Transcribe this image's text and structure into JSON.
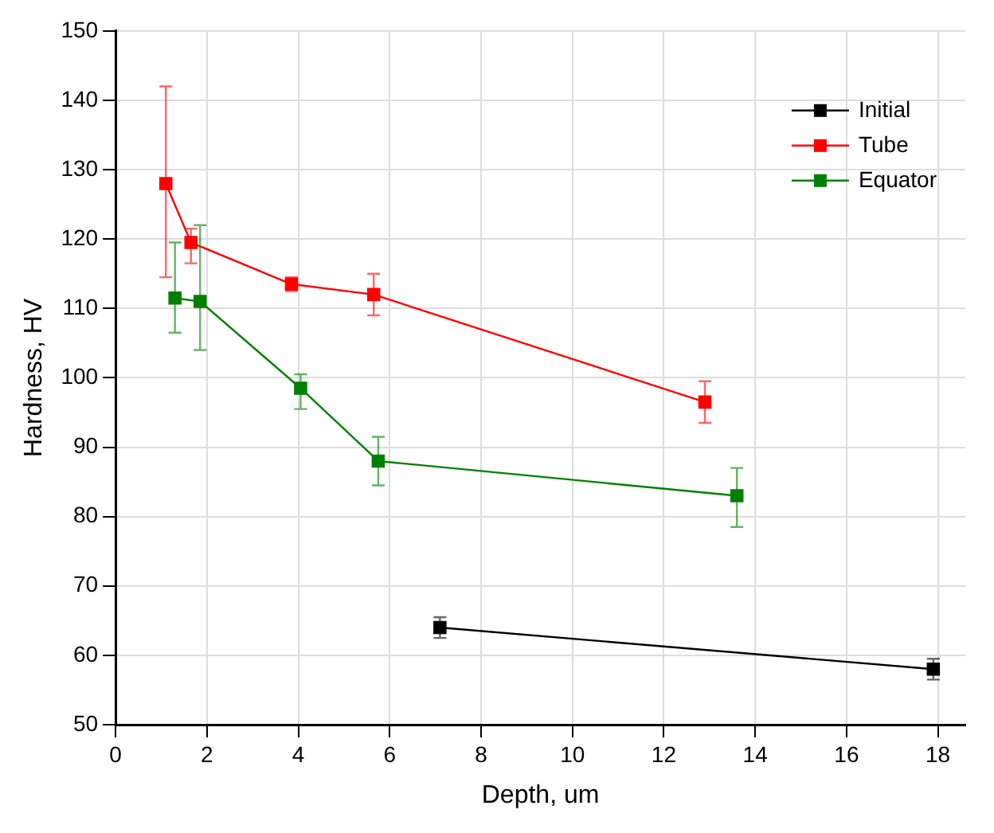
{
  "chart_data": {
    "type": "line",
    "xlabel": "Depth, um",
    "ylabel": "Hardness, HV",
    "xlim": [
      0,
      18.6
    ],
    "xticks": [
      0,
      2,
      4,
      6,
      8,
      10,
      12,
      14,
      16,
      18
    ],
    "ylim": [
      50,
      150
    ],
    "yticks": [
      50,
      60,
      70,
      80,
      90,
      100,
      110,
      120,
      130,
      140,
      150
    ],
    "grid": true,
    "legend": "top right",
    "marker": "square",
    "line_style": "solid",
    "series": [
      {
        "name": "Initial",
        "color": "#000000",
        "x": [
          7.1,
          17.9
        ],
        "values": [
          64,
          58
        ],
        "errors": [
          1.5,
          1.5
        ]
      },
      {
        "name": "Tube",
        "color": "#ff0000",
        "x": [
          1.1,
          1.65,
          3.85,
          5.65,
          12.9
        ],
        "values": [
          128,
          119.5,
          113.5,
          112,
          96.5
        ],
        "errors": [
          [
            114.5,
            142
          ],
          [
            116.5,
            121.5
          ],
          [
            112.5,
            114.5
          ],
          [
            109,
            115
          ],
          [
            93.5,
            99.5
          ]
        ]
      },
      {
        "name": "Equator",
        "color": "#008000",
        "x": [
          1.3,
          1.85,
          4.05,
          5.75,
          13.6
        ],
        "values": [
          111.5,
          111,
          98.5,
          88,
          83
        ],
        "errors": [
          [
            106.5,
            119.5
          ],
          [
            104,
            122
          ],
          [
            95.5,
            100.5
          ],
          [
            84.5,
            91.5
          ],
          [
            78.5,
            87
          ]
        ]
      }
    ]
  }
}
